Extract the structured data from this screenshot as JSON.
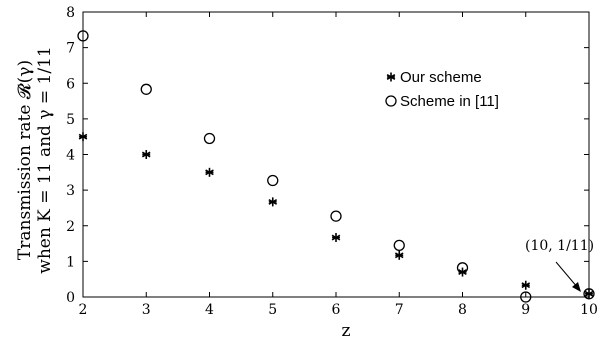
{
  "chart_data": {
    "type": "scatter",
    "title": "",
    "xlabel": "z",
    "ylabel_line1": "Transmission rate 𝓡(γ)",
    "ylabel_line2": "when K = 11 and γ = 1/11",
    "xlim": [
      2,
      10
    ],
    "ylim": [
      0,
      8
    ],
    "xticks": [
      "2",
      "3",
      "4",
      "5",
      "6",
      "7",
      "8",
      "9",
      "10"
    ],
    "yticks": [
      "0",
      "1",
      "2",
      "3",
      "4",
      "5",
      "6",
      "7",
      "8"
    ],
    "grid": false,
    "legend_position": "top-right",
    "series": [
      {
        "name": "Our scheme",
        "marker": "asterisk",
        "color": "#000000",
        "x": [
          2,
          3,
          4,
          5,
          6,
          7,
          8,
          9,
          10
        ],
        "y": [
          4.5,
          4.0,
          3.5,
          2.67,
          1.67,
          1.17,
          0.7,
          0.33,
          0.09
        ]
      },
      {
        "name": "Scheme in [11]",
        "marker": "circle",
        "color": "#000000",
        "x": [
          2,
          3,
          4,
          5,
          6,
          7,
          8,
          9,
          10
        ],
        "y": [
          7.33,
          5.83,
          4.45,
          3.27,
          2.27,
          1.45,
          0.82,
          0.0,
          0.09
        ]
      }
    ],
    "annotation": {
      "text": "(10, 1/11)",
      "x": 10,
      "y": 0.09
    }
  }
}
